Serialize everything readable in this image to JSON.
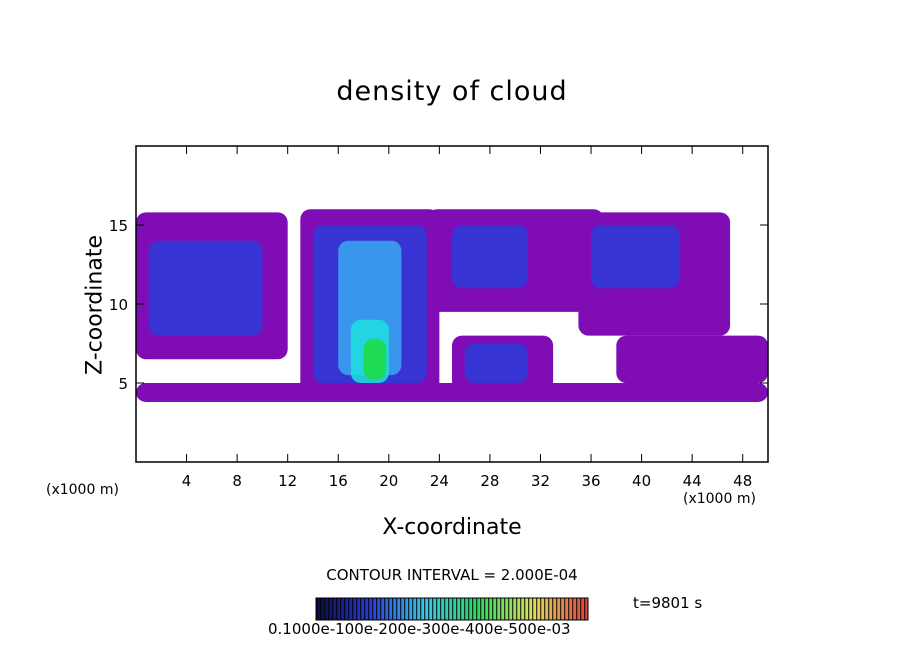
{
  "chart_data": {
    "type": "heatmap",
    "title": "density of cloud",
    "xlabel": "X-coordinate",
    "ylabel": "Z-coordinate",
    "x_unit_left": "(x1000 m)",
    "x_unit_right": "(x1000 m)",
    "xlim": [
      0,
      50
    ],
    "ylim": [
      0,
      20
    ],
    "x_ticks": [
      "4",
      "8",
      "12",
      "16",
      "20",
      "24",
      "28",
      "32",
      "36",
      "40",
      "44",
      "48"
    ],
    "y_ticks": [
      "5",
      "10",
      "15"
    ],
    "contour_interval_text": "CONTOUR INTERVAL = 2.000E-04",
    "time_text": "t=9801 s",
    "colorbar_labels_text": "0.1000e-100e-200e-300e-400e-500e-03",
    "colors": {
      "band_base": "#7f0cb4",
      "band_blue": "#2a3cd8",
      "band_light": "#39a8f0",
      "band_cyan": "#20e0e0",
      "band_green": "#1edc3c",
      "band_yellow": "#e8e040"
    },
    "cloud_regions": [
      {
        "x0": 0,
        "x1": 50,
        "z0": 3.8,
        "z1": 5.0,
        "level": 0
      },
      {
        "x0": 0,
        "x1": 12,
        "z0": 6.5,
        "z1": 15.8,
        "level": 0
      },
      {
        "x0": 13,
        "x1": 24,
        "z0": 4.0,
        "z1": 16.0,
        "level": 0
      },
      {
        "x0": 23,
        "x1": 37,
        "z0": 9.5,
        "z1": 16.0,
        "level": 0
      },
      {
        "x0": 35,
        "x1": 47,
        "z0": 8.0,
        "z1": 15.8,
        "level": 0
      },
      {
        "x0": 25,
        "x1": 33,
        "z0": 4.5,
        "z1": 8.0,
        "level": 0
      },
      {
        "x0": 38,
        "x1": 50,
        "z0": 5.0,
        "z1": 8.0,
        "level": 0
      },
      {
        "x0": 1,
        "x1": 10,
        "z0": 8.0,
        "z1": 14.0,
        "level": 1
      },
      {
        "x0": 14,
        "x1": 23,
        "z0": 5.0,
        "z1": 15.0,
        "level": 1
      },
      {
        "x0": 25,
        "x1": 31,
        "z0": 11.0,
        "z1": 15.0,
        "level": 1
      },
      {
        "x0": 36,
        "x1": 43,
        "z0": 11.0,
        "z1": 15.0,
        "level": 1
      },
      {
        "x0": 26,
        "x1": 31,
        "z0": 5.0,
        "z1": 7.5,
        "level": 1
      },
      {
        "x0": 16,
        "x1": 21,
        "z0": 5.5,
        "z1": 14.0,
        "level": 2
      },
      {
        "x0": 17,
        "x1": 20,
        "z0": 5.0,
        "z1": 9.0,
        "level": 3
      },
      {
        "x0": 18,
        "x1": 19.8,
        "z0": 5.2,
        "z1": 7.8,
        "level": 4
      }
    ]
  }
}
